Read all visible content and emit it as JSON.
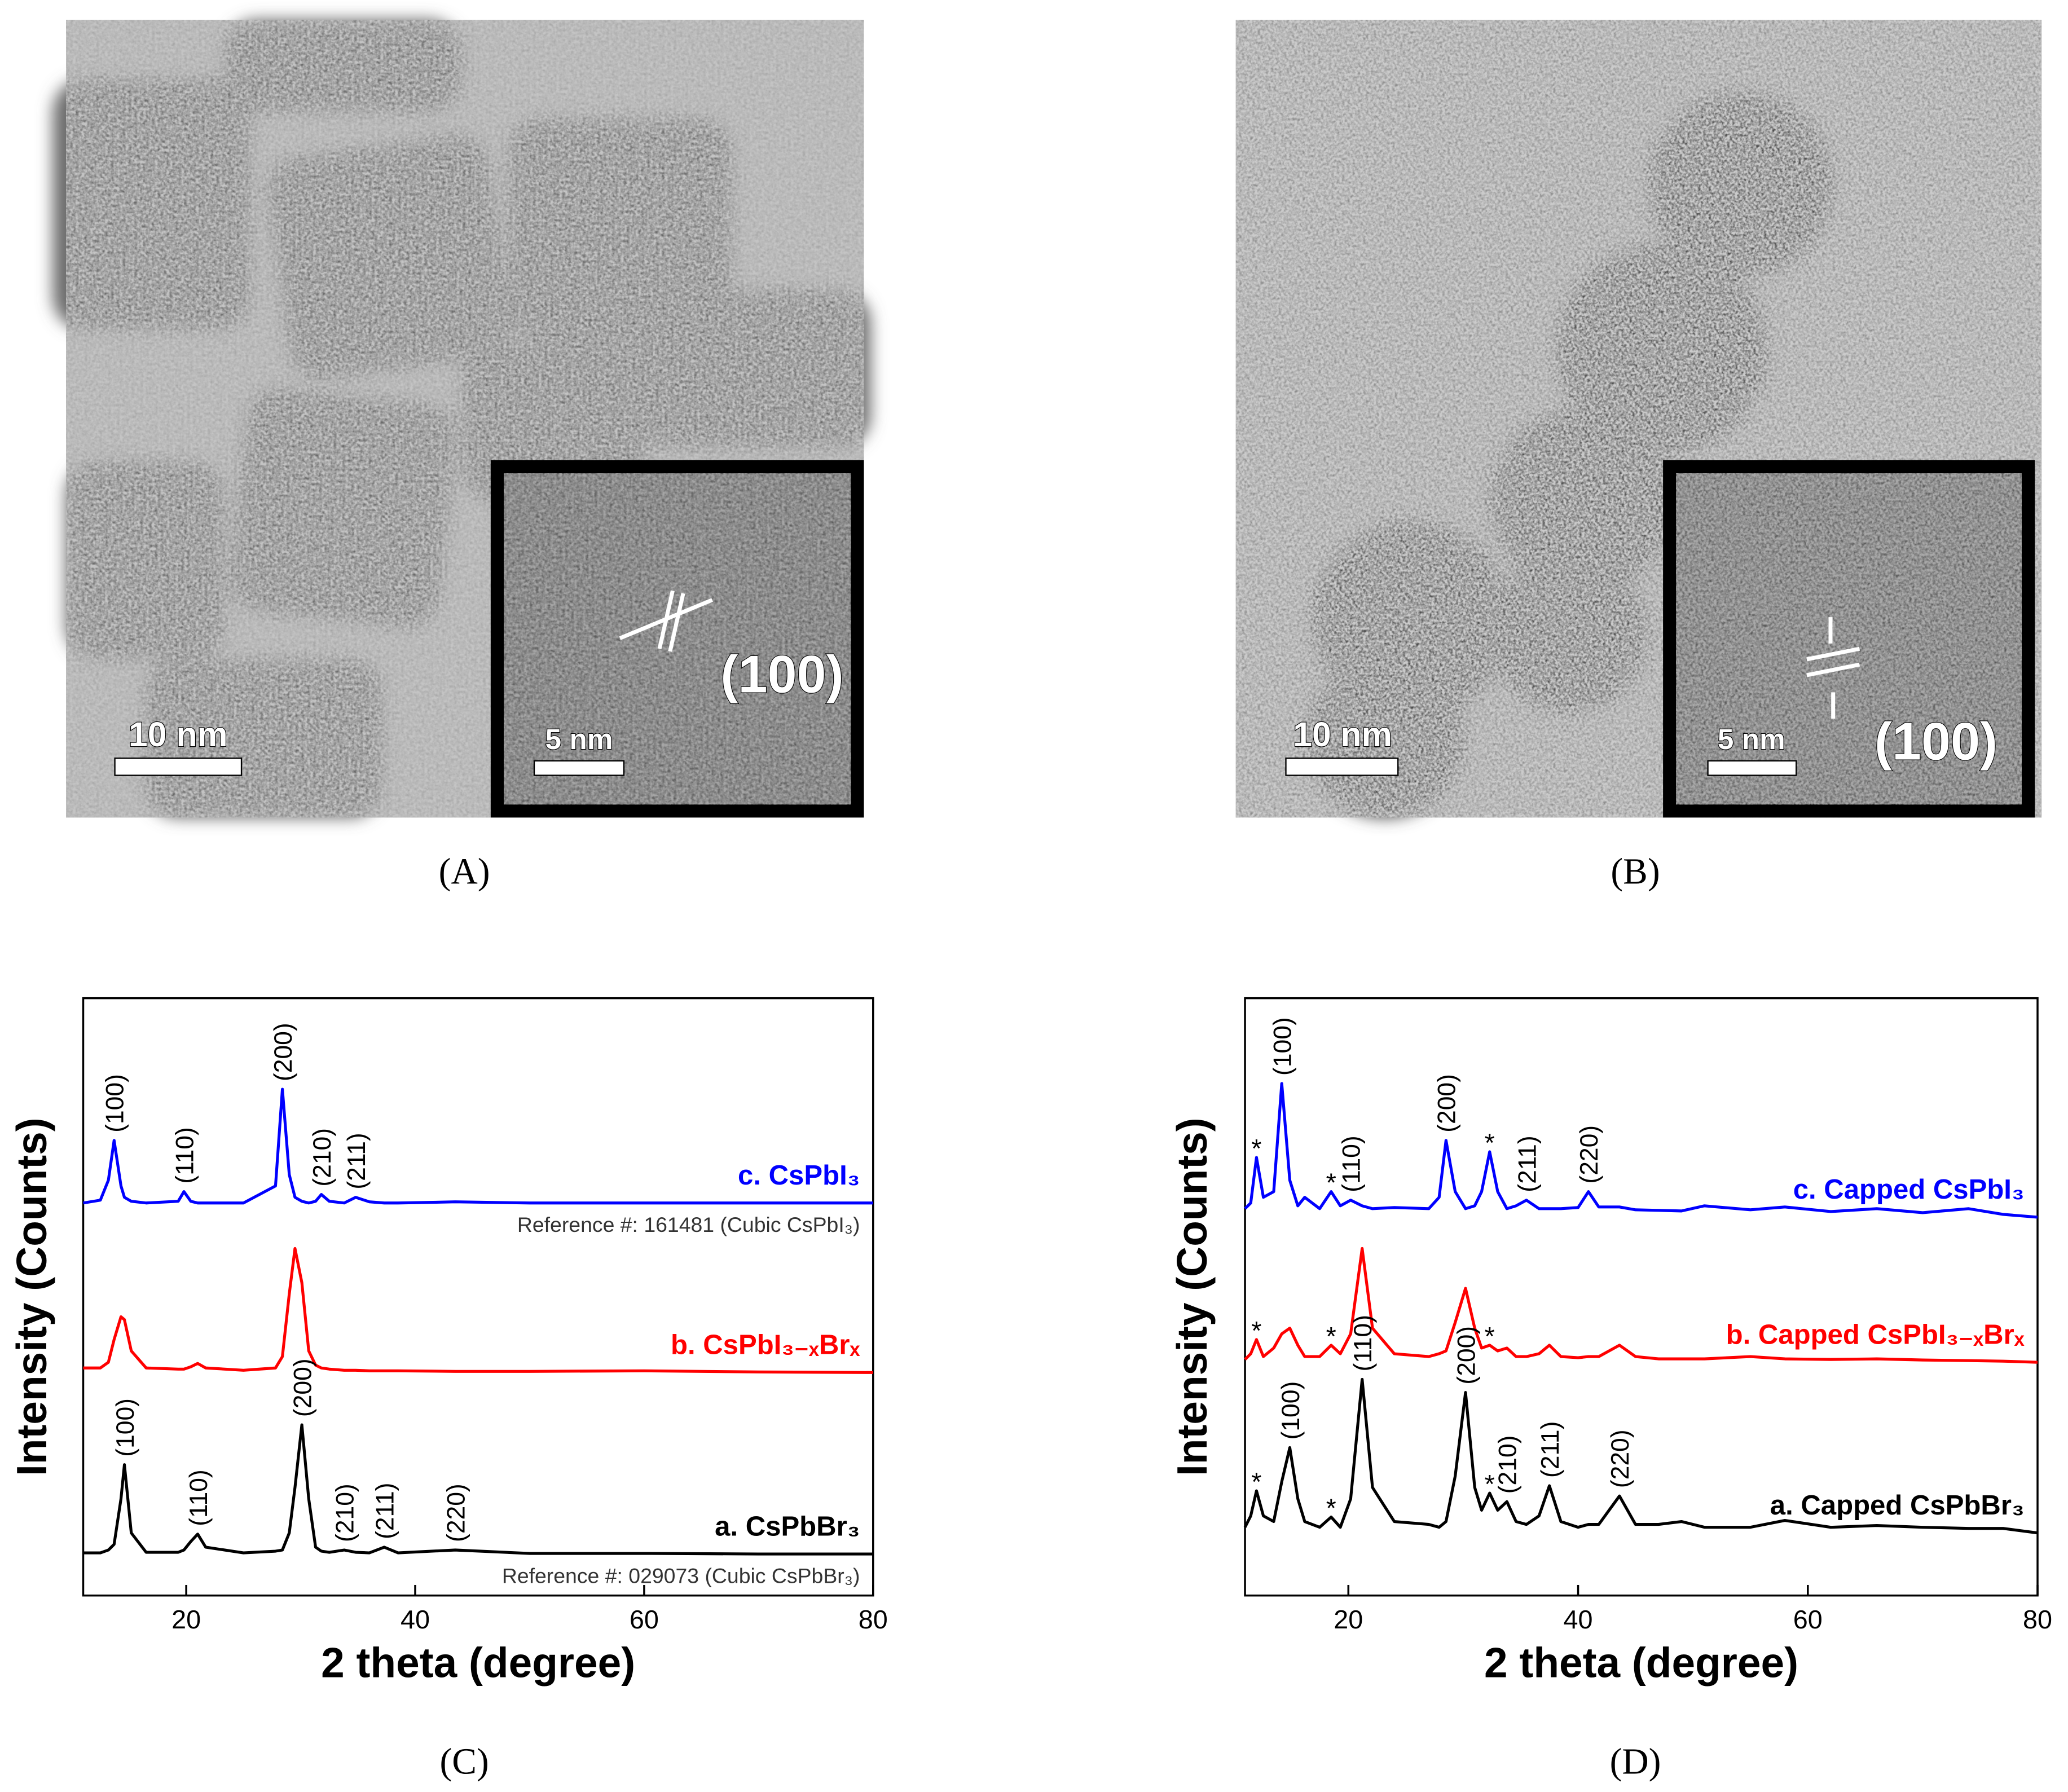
{
  "images": [
    {
      "caption": "(A)",
      "scale_bar": "10 nm",
      "inset_scale_bar": "5 nm",
      "inset_label": "(100)"
    },
    {
      "caption": "(B)",
      "scale_bar": "10 nm",
      "inset_scale_bar": "5 nm",
      "inset_label": "(100)"
    }
  ],
  "chart_data": [
    {
      "type": "line",
      "caption": "(C)",
      "xlabel": "2 theta (degree)",
      "ylabel": "Intensity (Counts)",
      "xlim": [
        11,
        80
      ],
      "xticks": [
        20,
        40,
        60,
        80
      ],
      "ylim": [
        -5,
        100
      ],
      "x": [
        11,
        12.5,
        13.2,
        13.7,
        14.3,
        14.6,
        15.2,
        16.5,
        19.3,
        19.8,
        20.4,
        21,
        21.7,
        25,
        27.8,
        28.4,
        29,
        29.5,
        30.1,
        30.7,
        31.3,
        31.8,
        32.5,
        33.8,
        34.8,
        36,
        37.3,
        38.5,
        43.5,
        50,
        60,
        70,
        80
      ],
      "series": [
        {
          "name": "c. CsPbI₃",
          "color": "#0000ff",
          "reference": "Reference #: 161481 (Cubic CsPbI₃)",
          "values": [
            64,
            64.5,
            68,
            75,
            67,
            65,
            64.3,
            64,
            64.3,
            66,
            64.3,
            64,
            64,
            64,
            67,
            84,
            69,
            65,
            64.3,
            64,
            64.3,
            65.5,
            64.3,
            64,
            65,
            64.2,
            64,
            64,
            64.2,
            64,
            64,
            64,
            64
          ],
          "labels": [
            {
              "x": 13.7,
              "text": "(100)"
            },
            {
              "x": 19.8,
              "text": "(110)"
            },
            {
              "x": 28.4,
              "text": "(200)"
            },
            {
              "x": 31.8,
              "text": "(210)"
            },
            {
              "x": 34.8,
              "text": "(211)"
            }
          ]
        },
        {
          "name": "b. CsPbI₃₋ₓBrₓ",
          "color": "#ff0000",
          "values": [
            35,
            35,
            36,
            40,
            44,
            43.5,
            38,
            35,
            34.8,
            34.8,
            35.2,
            35.8,
            35,
            34.6,
            35,
            37,
            48,
            56,
            50,
            38,
            35.5,
            35,
            34.8,
            34.6,
            34.6,
            34.5,
            34.5,
            34.5,
            34.4,
            34.4,
            34.5,
            34.3,
            34.2
          ],
          "labels": []
        },
        {
          "name": "a. CsPbBr₃",
          "color": "#000000",
          "reference": "Reference #: 029073 (Cubic CsPbBr₃)",
          "values": [
            2.5,
            2.5,
            3,
            4,
            12,
            18,
            6,
            2.6,
            2.6,
            3,
            4.5,
            5.8,
            3.5,
            2.5,
            2.8,
            3,
            6,
            14,
            25,
            12,
            3.5,
            2.8,
            2.6,
            3,
            2.6,
            2.5,
            3.5,
            2.5,
            3,
            2.4,
            2.4,
            2.3,
            2.3
          ],
          "labels": [
            {
              "x": 14.6,
              "text": "(100)"
            },
            {
              "x": 21,
              "text": "(110)"
            },
            {
              "x": 30.1,
              "text": "(200)"
            },
            {
              "x": 33.8,
              "text": "(210)"
            },
            {
              "x": 37.3,
              "text": "(211)"
            },
            {
              "x": 43.5,
              "text": "(220)"
            }
          ]
        }
      ]
    },
    {
      "type": "line",
      "caption": "(D)",
      "xlabel": "2 theta (degree)",
      "ylabel": "Intensity (Counts)",
      "xlim": [
        11,
        80
      ],
      "xticks": [
        20,
        40,
        60,
        80
      ],
      "ylim": [
        -5,
        100
      ],
      "x": [
        11,
        11.5,
        12,
        12.6,
        13.5,
        14.2,
        14.9,
        15.6,
        16.2,
        17.5,
        18.5,
        19.3,
        20.2,
        21.2,
        22.1,
        24,
        27,
        27.9,
        28.5,
        29.3,
        30.2,
        31,
        31.6,
        32.3,
        33,
        33.8,
        34.6,
        35.5,
        36.6,
        37.5,
        38.5,
        40,
        40.9,
        41.8,
        43.6,
        45,
        47,
        49,
        51,
        55,
        58,
        62,
        66,
        70,
        74,
        77,
        80
      ],
      "series": [
        {
          "name": "c. Capped CsPbI₃",
          "color": "#0000ff",
          "values": [
            63,
            64,
            72,
            65,
            66,
            85,
            68,
            63.5,
            65,
            63,
            66,
            63.5,
            64.5,
            63.5,
            63,
            63.2,
            63,
            65,
            75,
            66,
            63,
            63.5,
            66,
            73,
            66,
            63,
            63.5,
            64.5,
            63,
            63,
            63,
            63.2,
            66,
            63.3,
            63.3,
            62.8,
            62.7,
            62.6,
            63.5,
            62.8,
            63.3,
            62.5,
            63,
            62.3,
            63,
            62,
            61.5
          ],
          "labels": [
            {
              "x": 12,
              "text": "*"
            },
            {
              "x": 14.2,
              "text": "(100)"
            },
            {
              "x": 18.5,
              "text": "*"
            },
            {
              "x": 20.2,
              "text": "(110)"
            },
            {
              "x": 28.5,
              "text": "(200)"
            },
            {
              "x": 32.3,
              "text": "*"
            },
            {
              "x": 35.5,
              "text": "(211)"
            },
            {
              "x": 40.9,
              "text": "(220)"
            }
          ]
        },
        {
          "name": "b. Capped CsPbI₃₋ₓBrₓ",
          "color": "#ff0000",
          "values": [
            36.5,
            37.5,
            40,
            37,
            38.5,
            41,
            42,
            39,
            37,
            37,
            39,
            37.5,
            41,
            56,
            42,
            37.5,
            37,
            37.5,
            38,
            43,
            49,
            42,
            38.5,
            39,
            38,
            38.5,
            37,
            37,
            37.5,
            39,
            37,
            36.8,
            37,
            37,
            39,
            37,
            36.6,
            36.6,
            36.6,
            37,
            36.6,
            36.5,
            36.6,
            36.4,
            36.3,
            36.2,
            36
          ],
          "labels": [
            {
              "x": 12,
              "text": "*"
            },
            {
              "x": 18.5,
              "text": "*"
            },
            {
              "x": 32.3,
              "text": "*"
            }
          ]
        },
        {
          "name": "a. Capped CsPbBr₃",
          "color": "#000000",
          "values": [
            7,
            9,
            13.4,
            9,
            8,
            15,
            21,
            12,
            8,
            7,
            8.8,
            7,
            12,
            33,
            14,
            8,
            7.5,
            7,
            8,
            16,
            30.7,
            14,
            10,
            13,
            10,
            11.5,
            8,
            7.5,
            9,
            14.3,
            8,
            7,
            7.5,
            7.5,
            12.5,
            7.5,
            7.5,
            8,
            7,
            7,
            8.2,
            7,
            7.3,
            7,
            6.8,
            6.8,
            6
          ],
          "labels": [
            {
              "x": 12,
              "text": "*"
            },
            {
              "x": 14.9,
              "text": "(100)"
            },
            {
              "x": 18.5,
              "text": "*"
            },
            {
              "x": 21.2,
              "text": "(110)"
            },
            {
              "x": 30.2,
              "text": "(200)"
            },
            {
              "x": 32.3,
              "text": "*"
            },
            {
              "x": 33.8,
              "text": "(210)"
            },
            {
              "x": 37.5,
              "text": "(211)"
            },
            {
              "x": 43.6,
              "text": "(220)"
            }
          ]
        }
      ]
    }
  ]
}
